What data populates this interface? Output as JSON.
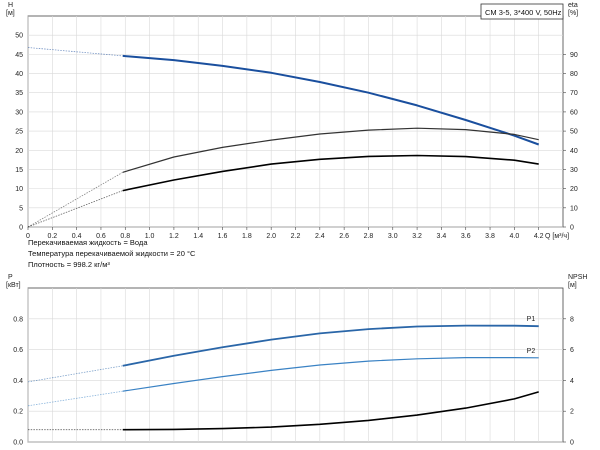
{
  "chart_data": [
    {
      "type": "line",
      "title": "CM 3-5, 3*400 V, 50Hz",
      "xlabel": "Q [м³/ч]",
      "ylabel": "H [м]",
      "y2label": "eta [%]",
      "xlim": [
        0,
        4.4
      ],
      "ylim": [
        0,
        55
      ],
      "y2lim": [
        0,
        110
      ],
      "x_ticks": [
        0,
        0.2,
        0.4,
        0.6,
        0.8,
        1.0,
        1.2,
        1.4,
        1.6,
        1.8,
        2.0,
        2.2,
        2.4,
        2.6,
        2.8,
        3.0,
        3.2,
        3.4,
        3.6,
        3.8,
        4.0,
        4.2
      ],
      "y_ticks": [
        0,
        5,
        10,
        15,
        20,
        25,
        30,
        35,
        40,
        45,
        50
      ],
      "y2_ticks": [
        0,
        10,
        20,
        30,
        40,
        50,
        60,
        70,
        80,
        90
      ],
      "grid": true,
      "series": [
        {
          "name": "",
          "axis": "left",
          "color": "#1a4f9e",
          "width": 2,
          "x": [
            0,
            0.78,
            1.2,
            1.6,
            2.0,
            2.4,
            2.8,
            3.2,
            3.6,
            4.0,
            4.2
          ],
          "y": [
            46.8,
            44.6,
            43.5,
            42.0,
            40.2,
            37.8,
            35.0,
            31.7,
            27.9,
            23.8,
            21.5
          ],
          "extrapolated_to": 0.78
        },
        {
          "name": "",
          "axis": "right",
          "color": "#333333",
          "width": 1.2,
          "x": [
            0,
            0.78,
            1.2,
            1.6,
            2.0,
            2.4,
            2.8,
            3.2,
            3.6,
            4.0,
            4.2
          ],
          "y": [
            0,
            28.5,
            36.5,
            41.5,
            45.3,
            48.5,
            50.5,
            51.5,
            50.8,
            48.3,
            45.5
          ],
          "extrapolated_to": 0.78
        },
        {
          "name": "",
          "axis": "right",
          "color": "#000000",
          "width": 1.6,
          "x": [
            0,
            0.78,
            1.2,
            1.6,
            2.0,
            2.4,
            2.8,
            3.2,
            3.6,
            4.0,
            4.2
          ],
          "y": [
            0,
            19.0,
            24.5,
            29.0,
            32.8,
            35.3,
            36.8,
            37.3,
            36.7,
            34.8,
            32.8
          ],
          "extrapolated_to": 0.78
        }
      ],
      "notes": [
        "Перекачиваемая жидкость = Вода",
        "Температура перекачиваемой жидкости = 20 °C",
        "Плотность = 998.2 кг/м³"
      ]
    },
    {
      "type": "line",
      "ylabel": "P [кВт]",
      "y2label": "NPSH [м]",
      "xlim": [
        0,
        4.4
      ],
      "ylim": [
        0,
        1.0
      ],
      "y2lim": [
        0,
        10
      ],
      "y_ticks": [
        0,
        0.2,
        0.4,
        0.6,
        0.8
      ],
      "y_tick_labels": [
        "0.0",
        "0.2",
        "0.4",
        "0.6",
        "0.8"
      ],
      "y2_ticks": [
        0,
        2,
        4,
        6,
        8
      ],
      "grid": true,
      "series": [
        {
          "name": "P1",
          "axis": "left",
          "color": "#2a66a8",
          "width": 1.8,
          "x": [
            0,
            0.78,
            1.2,
            1.6,
            2.0,
            2.4,
            2.8,
            3.2,
            3.6,
            4.0,
            4.2
          ],
          "y": [
            0.39,
            0.495,
            0.56,
            0.615,
            0.665,
            0.705,
            0.733,
            0.75,
            0.756,
            0.755,
            0.752
          ],
          "extrapolated_to": 0.78
        },
        {
          "name": "P2",
          "axis": "left",
          "color": "#3a82c4",
          "width": 1.2,
          "x": [
            0,
            0.78,
            1.2,
            1.6,
            2.0,
            2.4,
            2.8,
            3.2,
            3.6,
            4.0,
            4.2
          ],
          "y": [
            0.235,
            0.33,
            0.38,
            0.425,
            0.465,
            0.5,
            0.525,
            0.54,
            0.548,
            0.548,
            0.547
          ],
          "extrapolated_to": 0.78
        },
        {
          "name": "",
          "axis": "right",
          "color": "#000000",
          "width": 1.6,
          "x": [
            0,
            0.78,
            1.2,
            1.6,
            2.0,
            2.4,
            2.8,
            3.2,
            3.6,
            4.0,
            4.2
          ],
          "y": [
            0.8,
            0.8,
            0.82,
            0.87,
            0.97,
            1.15,
            1.4,
            1.75,
            2.2,
            2.8,
            3.25
          ],
          "extrapolated_to": 0.78
        }
      ]
    }
  ]
}
